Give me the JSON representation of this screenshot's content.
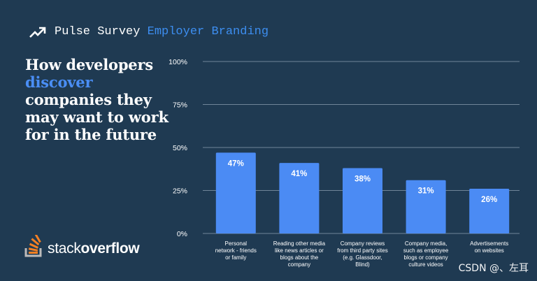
{
  "header": {
    "lead": "Pulse Survey",
    "accent": "Employer Branding",
    "icon": "trending-up-icon",
    "accent_color": "#3d8ef0"
  },
  "headline": {
    "before": "How developers",
    "accent": "discover",
    "after": "companies they may want to work for in the future"
  },
  "logo": {
    "part1": "stack",
    "part2": "overflow",
    "icon": "stack-overflow-icon"
  },
  "watermark": "CSDN @、左耳",
  "colors": {
    "background": "#1f3a52",
    "bar": "#4b8bf4",
    "grid": "#6f8599",
    "text": "#ffffff"
  },
  "chart_data": {
    "type": "bar",
    "categories": [
      [
        "Personal",
        "network - friends",
        "or family"
      ],
      [
        "Reading other media",
        "like news articles or",
        "blogs about the",
        "company"
      ],
      [
        "Company reviews",
        "from third party sites",
        "(e.g. Glassdoor,",
        "Blind)"
      ],
      [
        "Company media,",
        "such as employee",
        "blogs or company",
        "culture videos"
      ],
      [
        "Advertisements",
        "on websites"
      ]
    ],
    "values": [
      47,
      41,
      38,
      31,
      26
    ],
    "data_labels": [
      "47%",
      "41%",
      "38%",
      "31%",
      "26%"
    ],
    "ylim": [
      0,
      100
    ],
    "yticks": [
      0,
      25,
      50,
      75,
      100
    ],
    "ytick_labels": [
      "0%",
      "25%",
      "50%",
      "75%",
      "100%"
    ],
    "grid": true
  }
}
